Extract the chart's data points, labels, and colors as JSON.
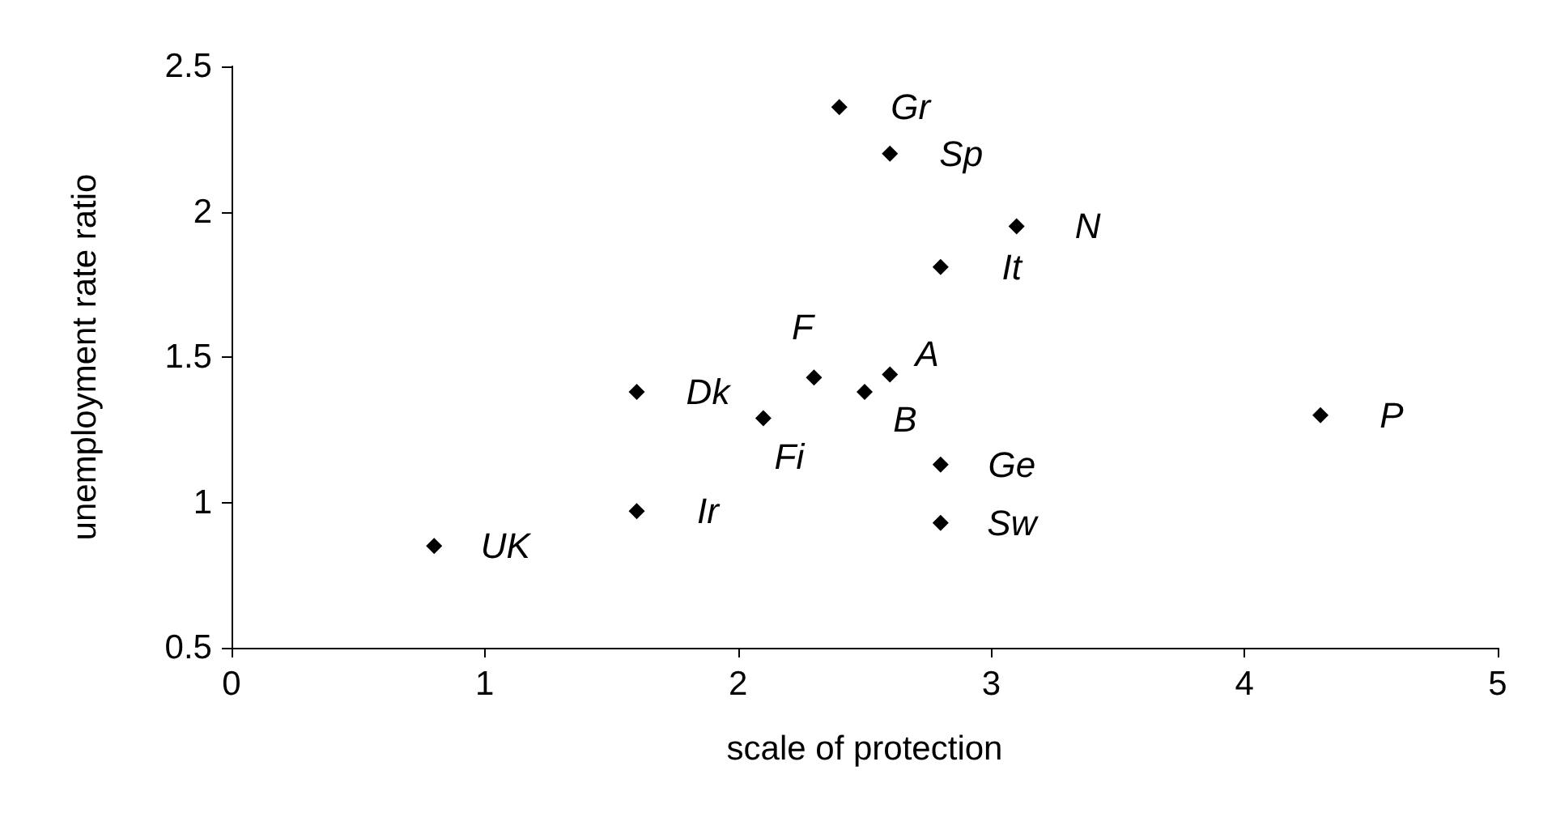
{
  "chart_data": {
    "type": "scatter",
    "xlabel": "scale of protection",
    "ylabel": "unemployment rate ratio",
    "x": [
      0.8,
      1.6,
      1.6,
      2.1,
      2.3,
      2.5,
      2.6,
      2.4,
      2.6,
      3.1,
      2.8,
      2.8,
      2.8,
      4.3
    ],
    "series": [
      {
        "color": "#000000",
        "values": [
          0.85,
          0.97,
          1.38,
          1.29,
          1.43,
          1.38,
          1.44,
          2.36,
          2.2,
          1.95,
          1.81,
          1.13,
          0.93,
          1.3
        ]
      }
    ],
    "annotations": [
      {
        "text": "UK",
        "x": 0.8,
        "y": 0.85
      },
      {
        "text": "Ir",
        "x": 1.6,
        "y": 0.97
      },
      {
        "text": "Dk",
        "x": 1.6,
        "y": 1.38
      },
      {
        "text": "Fi",
        "x": 2.1,
        "y": 1.29
      },
      {
        "text": "F",
        "x": 2.3,
        "y": 1.43
      },
      {
        "text": "B",
        "x": 2.5,
        "y": 1.38
      },
      {
        "text": "A",
        "x": 2.6,
        "y": 1.44
      },
      {
        "text": "Gr",
        "x": 2.4,
        "y": 2.36
      },
      {
        "text": "Sp",
        "x": 2.6,
        "y": 2.2
      },
      {
        "text": "N",
        "x": 3.1,
        "y": 1.95
      },
      {
        "text": "It",
        "x": 2.8,
        "y": 1.81
      },
      {
        "text": "Ge",
        "x": 2.8,
        "y": 1.13
      },
      {
        "text": "Sw",
        "x": 2.8,
        "y": 0.93
      },
      {
        "text": "P",
        "x": 4.3,
        "y": 1.3
      }
    ],
    "xlim": [
      0,
      5
    ],
    "xticks": [
      0,
      1,
      2,
      3,
      4,
      5
    ],
    "ylim": [
      0.5,
      2.5
    ],
    "yticks": [
      0.5,
      1,
      1.5,
      2,
      2.5
    ],
    "grid": false,
    "marker": "diamond"
  }
}
